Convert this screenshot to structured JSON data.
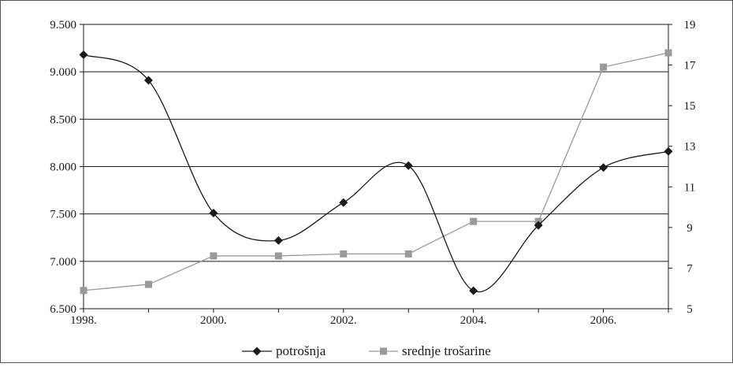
{
  "chart_data": {
    "type": "line",
    "title": "",
    "xlabel": "",
    "ylabel": "",
    "x": [
      1998,
      1999,
      2000,
      2001,
      2002,
      2003,
      2004,
      2005,
      2006,
      2007
    ],
    "x_tick_labels": [
      "1998.",
      "2000.",
      "2002.",
      "2004.",
      "2006."
    ],
    "x_tick_values": [
      1998,
      2000,
      2002,
      2004,
      2006
    ],
    "xlim": [
      1998,
      2007
    ],
    "y_left": {
      "lim": [
        6500,
        9500
      ],
      "tick_values": [
        6500,
        7000,
        7500,
        8000,
        8500,
        9000,
        9500
      ],
      "tick_labels": [
        "6.500",
        "7.000",
        "7.500",
        "8.000",
        "8.500",
        "9.000",
        "9.500"
      ]
    },
    "y_right": {
      "lim": [
        5,
        19
      ],
      "tick_values": [
        5,
        7,
        9,
        11,
        13,
        15,
        17,
        19
      ],
      "tick_labels": [
        "5",
        "7",
        "9",
        "11",
        "13",
        "15",
        "17",
        "19"
      ]
    },
    "grid": true,
    "legend_position": "bottom",
    "series": [
      {
        "name": "potrošnja",
        "axis": "left",
        "smooth": true,
        "marker": "diamond",
        "color": "#1a1a1a",
        "values": [
          9180,
          8910,
          7510,
          7220,
          7620,
          8010,
          6690,
          7380,
          7990,
          8160
        ]
      },
      {
        "name": "srednje trošarine",
        "axis": "right",
        "smooth": false,
        "marker": "square",
        "color": "#9a9a9a",
        "values": [
          5.9,
          6.2,
          7.6,
          7.6,
          7.7,
          7.7,
          9.3,
          9.3,
          16.9,
          17.6
        ]
      }
    ]
  }
}
